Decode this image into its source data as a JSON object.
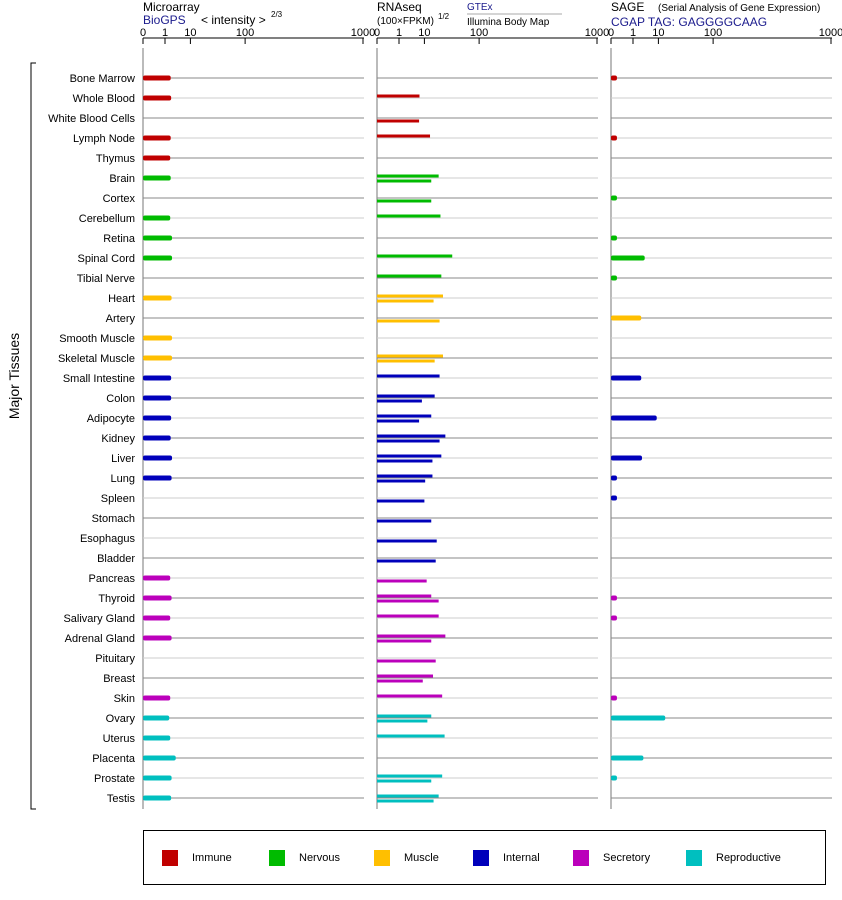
{
  "chart_data": {
    "type": "bar",
    "orientation": "horizontal",
    "axis_label": "Major Tissues",
    "categories": [
      "Bone Marrow",
      "Whole Blood",
      "White Blood Cells",
      "Lymph Node",
      "Thymus",
      "Brain",
      "Cortex",
      "Cerebellum",
      "Retina",
      "Spinal Cord",
      "Tibial Nerve",
      "Heart",
      "Artery",
      "Smooth Muscle",
      "Skeletal Muscle",
      "Small Intestine",
      "Colon",
      "Adipocyte",
      "Kidney",
      "Liver",
      "Lung",
      "Spleen",
      "Stomach",
      "Esophagus",
      "Bladder",
      "Pancreas",
      "Thyroid",
      "Salivary Gland",
      "Adrenal Gland",
      "Pituitary",
      "Breast",
      "Skin",
      "Ovary",
      "Uterus",
      "Placenta",
      "Prostate",
      "Testis"
    ],
    "groups": [
      "Immune",
      "Immune",
      "Immune",
      "Immune",
      "Immune",
      "Nervous",
      "Nervous",
      "Nervous",
      "Nervous",
      "Nervous",
      "Nervous",
      "Muscle",
      "Muscle",
      "Muscle",
      "Muscle",
      "Internal",
      "Internal",
      "Internal",
      "Internal",
      "Internal",
      "Internal",
      "Internal",
      "Internal",
      "Internal",
      "Internal",
      "Secretory",
      "Secretory",
      "Secretory",
      "Secretory",
      "Secretory",
      "Secretory",
      "Secretory",
      "Reproductive",
      "Reproductive",
      "Reproductive",
      "Reproductive",
      "Reproductive"
    ],
    "group_colors": {
      "Immune": "#c00000",
      "Nervous": "#00bb00",
      "Muscle": "#ffbf00",
      "Internal": "#0000bb",
      "Secretory": "#bb00bb",
      "Reproductive": "#00bfbf"
    },
    "panels": [
      {
        "title": "Microarray",
        "subtitle_link": "BioGPS",
        "subtitle": "< intensity >",
        "exponent": "2/3",
        "tick_labels": [
          "0",
          "1",
          "10",
          "100",
          "1000"
        ],
        "xlim": [
          0,
          1000
        ],
        "values": [
          2.0,
          2.1,
          null,
          2.0,
          1.9,
          2.0,
          null,
          1.9,
          2.3,
          2.3,
          null,
          2.2,
          null,
          2.3,
          2.3,
          2.1,
          2.1,
          2.1,
          2.0,
          2.3,
          2.2,
          null,
          null,
          null,
          null,
          1.9,
          2.2,
          1.9,
          2.2,
          null,
          null,
          1.9,
          1.7,
          1.9,
          3.3,
          2.2,
          2.1
        ]
      },
      {
        "title": "RNAseq",
        "subtitle": "(100×FPKM)",
        "exponent": "1/2",
        "link": "GTEx",
        "sub_source": "Illumina Body Map",
        "tick_labels": [
          "0",
          "1",
          "10",
          "100",
          "1000"
        ],
        "xlim": [
          0,
          1000
        ],
        "values": [
          [
            null,
            null
          ],
          [
            7.2,
            null
          ],
          [
            null,
            7.0
          ],
          [
            14.0,
            null
          ],
          [
            null,
            null
          ],
          [
            22.0,
            15.0
          ],
          [
            null,
            15.0
          ],
          [
            24.0,
            null
          ],
          [
            null,
            null
          ],
          [
            40.0,
            null
          ],
          [
            25.0,
            null
          ],
          [
            27.0,
            17.0
          ],
          [
            null,
            23.0
          ],
          [
            null,
            null
          ],
          [
            27.0,
            18.0
          ],
          [
            23.0,
            null
          ],
          [
            18.0,
            8.5
          ],
          [
            15.0,
            7.0
          ],
          [
            30.0,
            23.0
          ],
          [
            25.0,
            16.0
          ],
          [
            16.0,
            10.5
          ],
          [
            null,
            10.0
          ],
          [
            null,
            15.0
          ],
          [
            null,
            20.0
          ],
          [
            null,
            19.0
          ],
          [
            null,
            11.5
          ],
          [
            15.0,
            22.0
          ],
          [
            22.0,
            null
          ],
          [
            30.0,
            15.0
          ],
          [
            null,
            19.0
          ],
          [
            16.5,
            9.0
          ],
          [
            26.0,
            null
          ],
          [
            15.0,
            12.0
          ],
          [
            29.0,
            null
          ],
          [
            null,
            null
          ],
          [
            26.0,
            15.0
          ],
          [
            22.0,
            17.0
          ]
        ]
      },
      {
        "title": "SAGE",
        "subtitle_note": "(Serial Analysis of Gene Expression)",
        "subtitle_link": "CGAP TAG: GAGGGGCAAG",
        "tick_labels": [
          "0",
          "1",
          "10",
          "100",
          "1000"
        ],
        "xlim": [
          0,
          1000
        ],
        "values": [
          0.02,
          null,
          null,
          0.02,
          null,
          null,
          0.02,
          null,
          0.02,
          3.6,
          0.02,
          null,
          2.6,
          null,
          null,
          2.6,
          null,
          9.0,
          null,
          2.8,
          0.02,
          0.02,
          null,
          null,
          null,
          null,
          0.02,
          0.02,
          null,
          null,
          null,
          0.02,
          15.0,
          null,
          3.2,
          0.02,
          null
        ]
      }
    ],
    "legend": [
      "Immune",
      "Nervous",
      "Muscle",
      "Internal",
      "Secretory",
      "Reproductive"
    ],
    "legend_placement": "bottom"
  }
}
